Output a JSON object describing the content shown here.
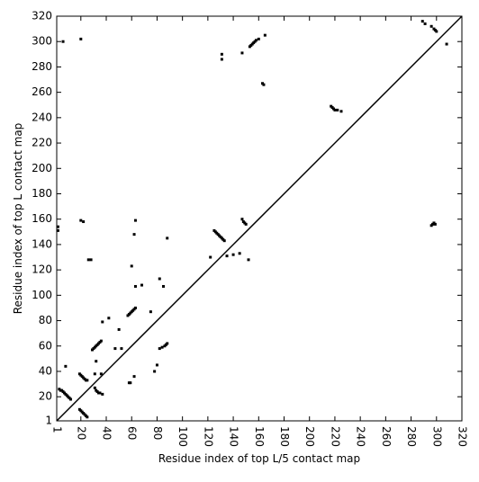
{
  "chart_data": {
    "type": "scatter",
    "xlabel": "Residue index of top L/5 contact map",
    "ylabel": "Residue index of top L contact map",
    "color": "#000000",
    "x": [
      3,
      4,
      5,
      6,
      7,
      8,
      9,
      10,
      11,
      12,
      19,
      20,
      21,
      22,
      23,
      24,
      25,
      29,
      30,
      31,
      32,
      33,
      34,
      35,
      36,
      57,
      58,
      59,
      60,
      61,
      62,
      63,
      125,
      126,
      127,
      128,
      129,
      130,
      131,
      132,
      133,
      147,
      148,
      149,
      150,
      153,
      154,
      155,
      156,
      157,
      158,
      160,
      163,
      164,
      217,
      218,
      219,
      220,
      222,
      225,
      131,
      131,
      165,
      147,
      20,
      8,
      20,
      22,
      28,
      26,
      37,
      42,
      50,
      63,
      68,
      75,
      82,
      85,
      88,
      122,
      135,
      140,
      152,
      2,
      2,
      6,
      60,
      63,
      62,
      145,
      289,
      291,
      296,
      298,
      299,
      300,
      19,
      20,
      21,
      22,
      23,
      24,
      25,
      31,
      32,
      33,
      34,
      35,
      37,
      58,
      59,
      82,
      84,
      86,
      87,
      88,
      296,
      297,
      298,
      299,
      308,
      47,
      52,
      36,
      32,
      78,
      80,
      62,
      31
    ],
    "values": [
      26,
      25,
      25,
      24,
      23,
      22,
      21,
      20,
      19,
      18,
      38,
      37,
      36,
      35,
      34,
      33,
      33,
      57,
      58,
      59,
      60,
      61,
      62,
      63,
      64,
      84,
      85,
      86,
      87,
      88,
      89,
      90,
      151,
      150,
      149,
      148,
      147,
      146,
      145,
      144,
      143,
      160,
      158,
      157,
      156,
      296,
      297,
      298,
      299,
      300,
      301,
      302,
      267,
      266,
      249,
      248,
      247,
      246,
      246,
      245,
      290,
      286,
      305,
      291,
      302,
      44,
      159,
      158,
      128,
      128,
      79,
      82,
      73,
      107,
      108,
      87,
      113,
      107,
      145,
      130,
      131,
      132,
      128,
      154,
      151,
      300,
      123,
      159,
      148,
      133,
      316,
      314,
      312,
      310,
      309,
      308,
      10,
      9,
      8,
      7,
      6,
      5,
      4,
      27,
      25,
      24,
      23,
      23,
      22,
      31,
      31,
      58,
      59,
      60,
      61,
      62,
      155,
      156,
      157,
      156,
      298,
      58,
      58,
      38,
      48,
      40,
      45,
      36,
      38
    ],
    "xlim": [
      1,
      320
    ],
    "ylim": [
      1,
      320
    ],
    "xticks": [
      1,
      20,
      40,
      60,
      80,
      100,
      120,
      140,
      160,
      180,
      200,
      220,
      240,
      260,
      280,
      300,
      320
    ],
    "yticks": [
      1,
      20,
      40,
      60,
      80,
      100,
      120,
      140,
      160,
      180,
      200,
      220,
      240,
      260,
      280,
      300,
      320
    ]
  }
}
